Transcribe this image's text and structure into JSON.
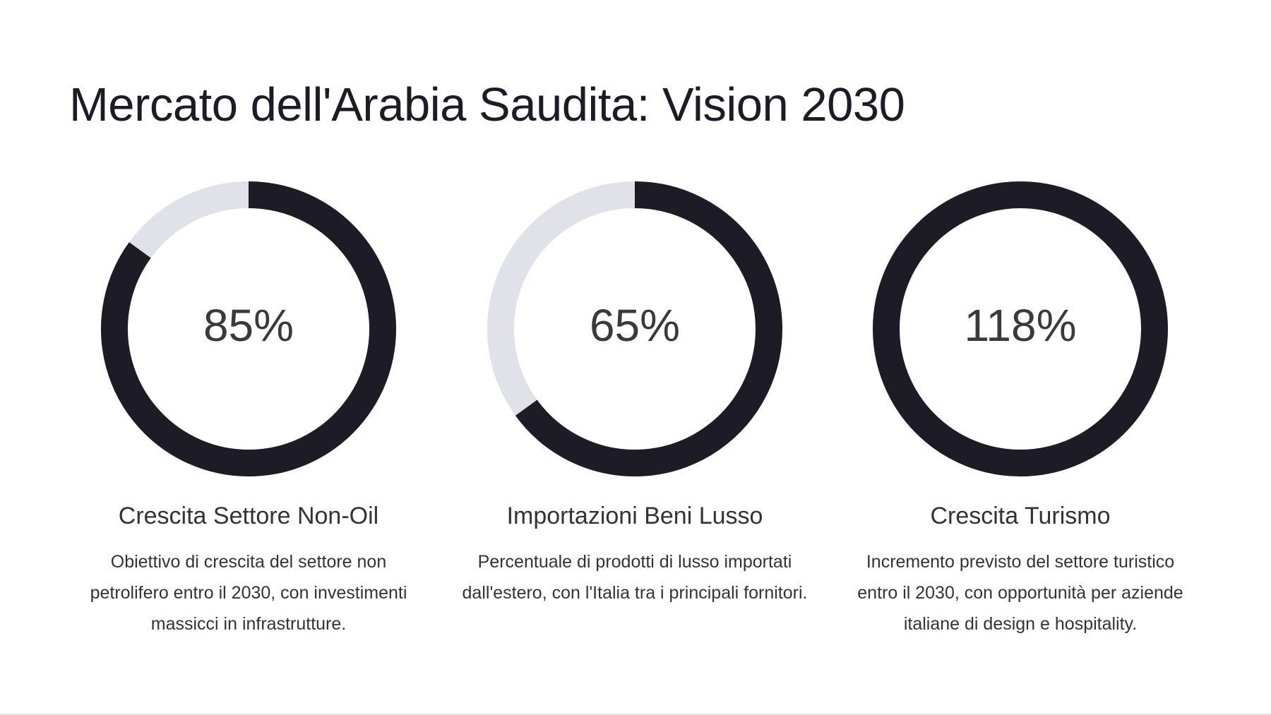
{
  "title": "Mercato dell'Arabia Saudita: Vision 2030",
  "chart_data": [
    {
      "type": "donut",
      "title": "Crescita Settore Non-Oil",
      "description": "Obiettivo di crescita del settore non petrolifero entro il 2030, con investimenti massicci in infrastrutture.",
      "values": [
        85
      ],
      "value_labels": [
        "85%"
      ],
      "color": "#1c1b26",
      "track_color": "#e1e1e9"
    },
    {
      "type": "donut",
      "title": "Importazioni Beni Lusso",
      "description": "Percentuale di prodotti di lusso importati dall'estero, con l'Italia tra i principali fornitori.",
      "values": [
        65
      ],
      "value_labels": [
        "65%"
      ],
      "color": "#1c1b26",
      "track_color": "#e1e1e9"
    },
    {
      "type": "donut",
      "title": "Crescita Turismo",
      "description": "Incremento previsto del settore turistico entro il 2030, con opportunità per aziende italiane di design e hospitality.",
      "values": [
        118
      ],
      "value_labels": [
        "118%"
      ],
      "color": "#1c1b26",
      "track_color": "#e1e1e9"
    }
  ]
}
